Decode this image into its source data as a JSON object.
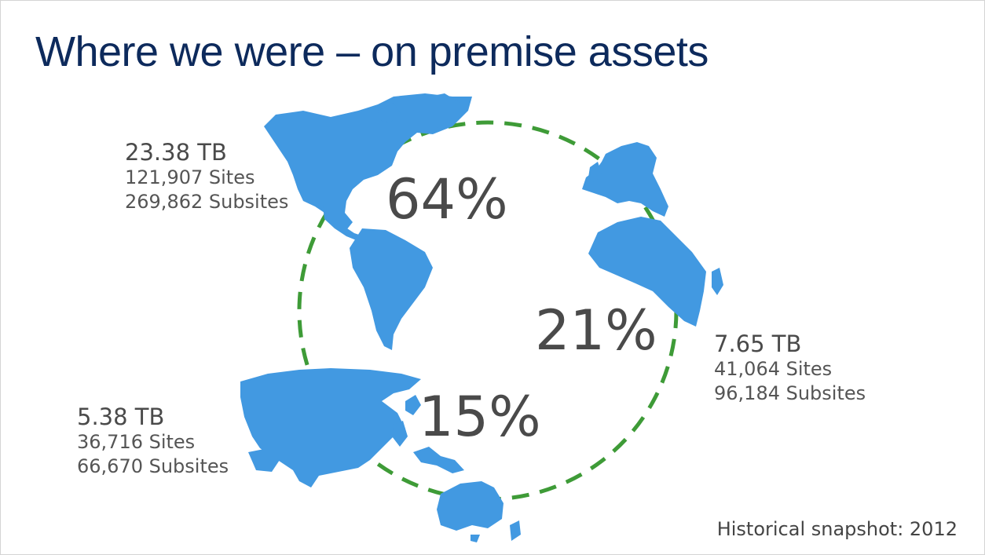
{
  "title": "Where we were – on premise assets",
  "colors": {
    "title": "#0d2a5c",
    "continent": "#4299e1",
    "ring": "#3e9b37",
    "text": "#4a4a4a"
  },
  "regions": {
    "americas": {
      "percent": "64%",
      "size": "23.38 TB",
      "sites": "121,907 Sites",
      "subsites": "269,862 Subsites"
    },
    "emea": {
      "percent": "21%",
      "size": "7.65 TB",
      "sites": "41,064 Sites",
      "subsites": "96,184 Subsites"
    },
    "apac": {
      "percent": "15%",
      "size": "5.38 TB",
      "sites": "36,716 Sites",
      "subsites": "66,670 Subsites"
    }
  },
  "footnote": "Historical snapshot: 2012"
}
